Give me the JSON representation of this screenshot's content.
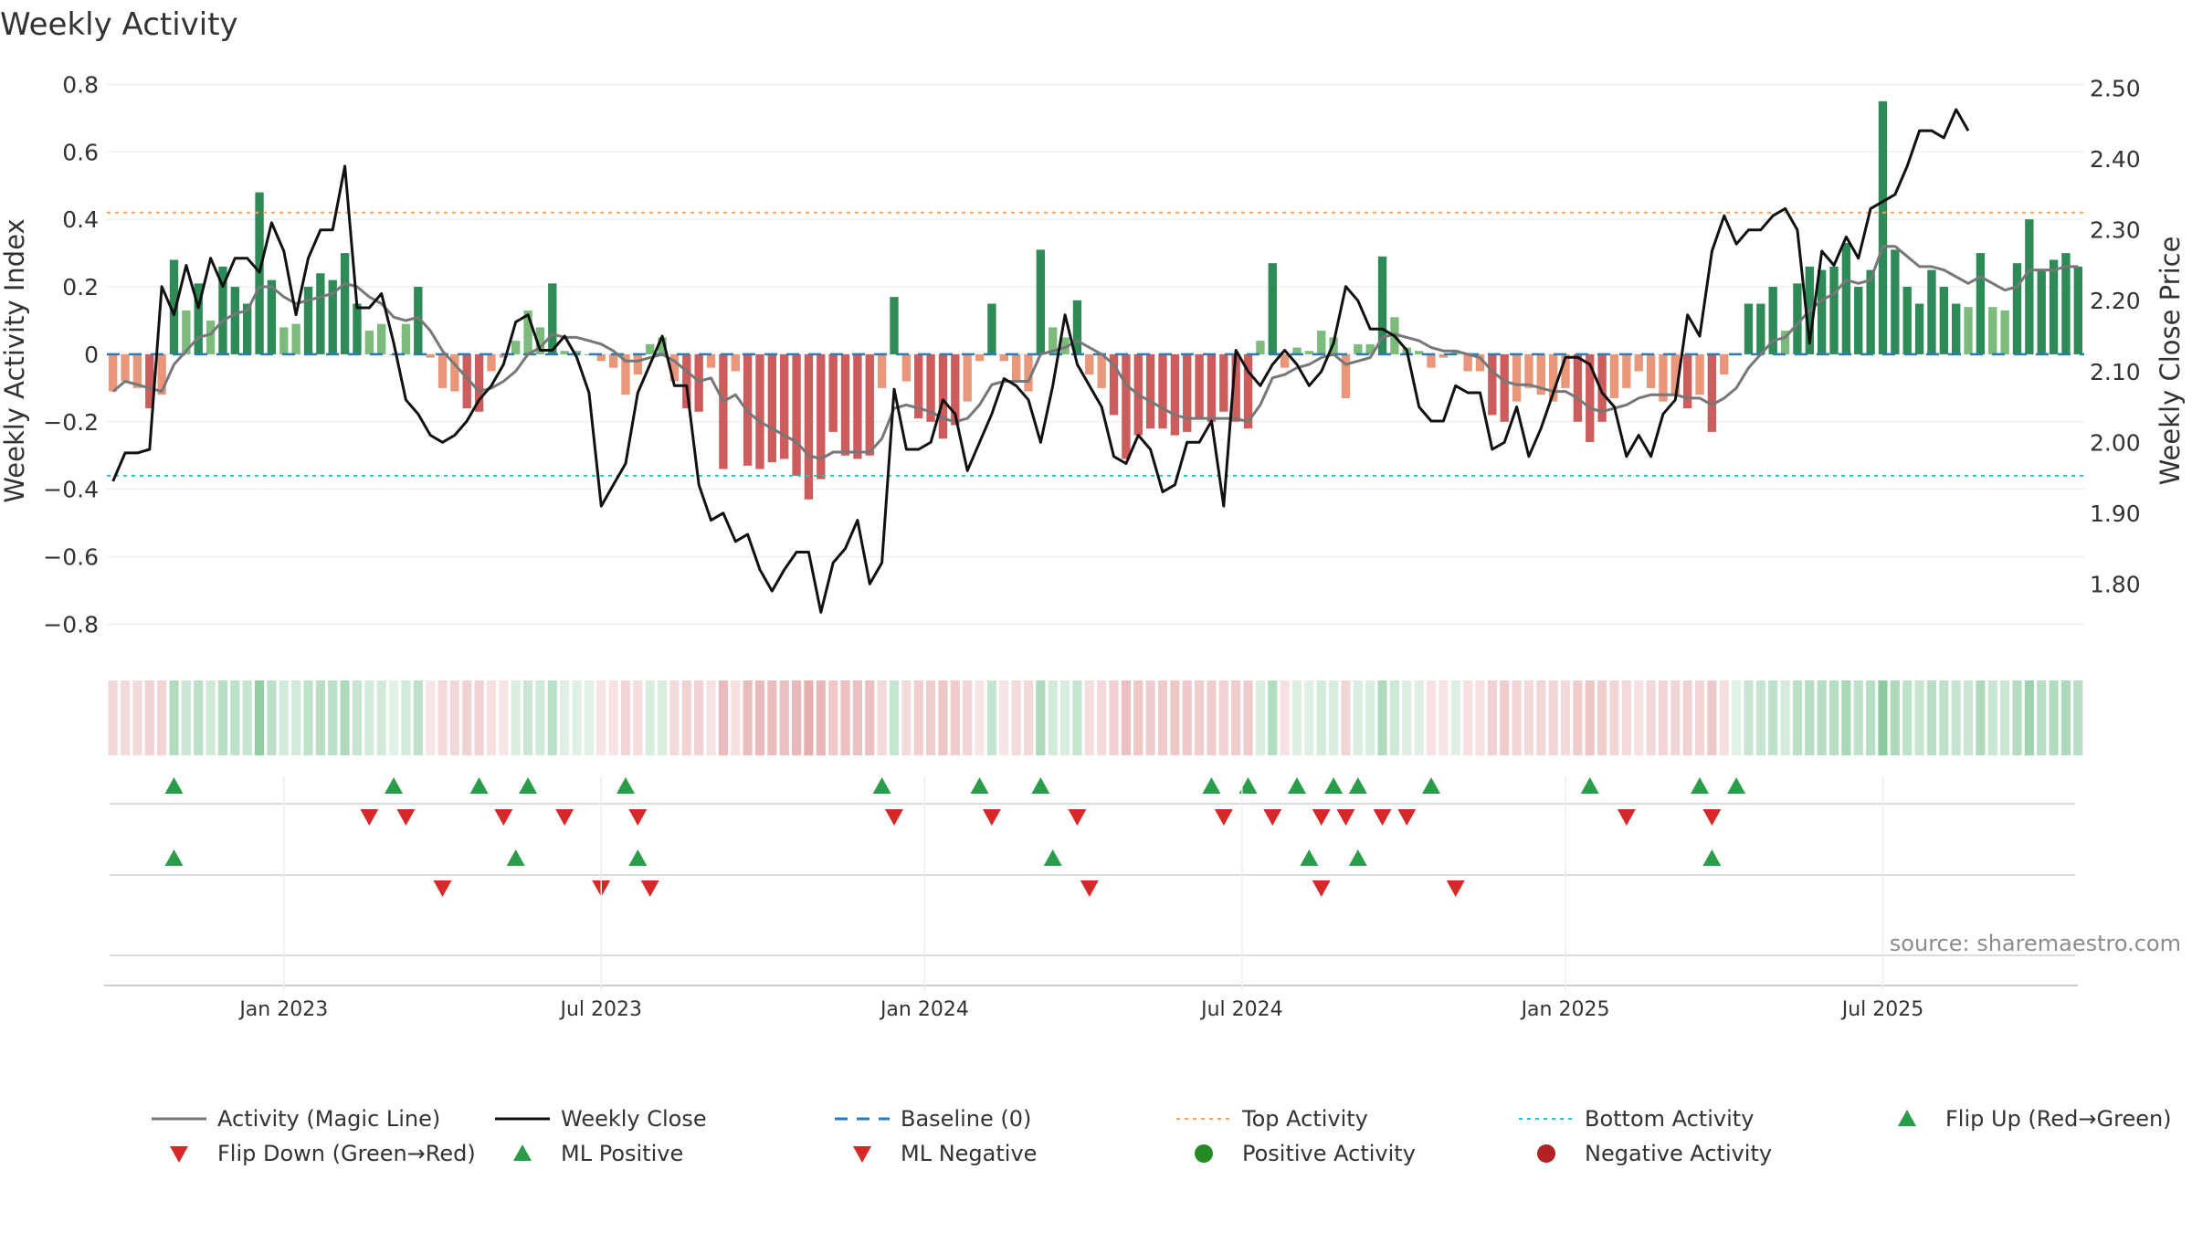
{
  "chart_data": {
    "type": "bar",
    "title": "Weekly Activity",
    "ylabel": "Weekly Activity Index",
    "y2label": "Weekly Close Price",
    "ylim": [
      -0.88,
      0.82
    ],
    "y2lim": [
      1.705,
      2.515
    ],
    "yticks": [
      "0.8",
      "0.6",
      "0.4",
      "0.2",
      "0",
      "−0.2",
      "−0.4",
      "−0.6",
      "−0.8"
    ],
    "y2ticks": [
      "2.50",
      "2.40",
      "2.30",
      "2.20",
      "2.10",
      "2.00",
      "1.90",
      "1.80"
    ],
    "xticks": [
      {
        "label": "Jan 2023",
        "week": 14
      },
      {
        "label": "Jul 2023",
        "week": 40
      },
      {
        "label": "Jan 2024",
        "week": 66.5
      },
      {
        "label": "Jul 2024",
        "week": 92.5
      },
      {
        "label": "Jan 2025",
        "week": 119
      },
      {
        "label": "Jul 2025",
        "week": 145
      }
    ],
    "top_activity": 0.42,
    "bottom_activity": -0.36,
    "baseline": 0,
    "activity": [
      -0.11,
      -0.08,
      -0.1,
      -0.16,
      -0.12,
      0.28,
      0.13,
      0.21,
      0.1,
      0.26,
      0.2,
      0.15,
      0.48,
      0.22,
      0.08,
      0.09,
      0.2,
      0.24,
      0.22,
      0.3,
      0.15,
      0.07,
      0.09,
      0.0,
      0.09,
      0.2,
      -0.01,
      -0.1,
      -0.11,
      -0.16,
      -0.17,
      -0.05,
      -0.01,
      0.04,
      0.13,
      0.08,
      0.21,
      0.01,
      0.01,
      0.0,
      -0.02,
      -0.04,
      -0.12,
      -0.06,
      0.03,
      0.05,
      -0.08,
      -0.16,
      -0.17,
      -0.04,
      -0.34,
      -0.05,
      -0.33,
      -0.34,
      -0.32,
      -0.31,
      -0.36,
      -0.43,
      -0.37,
      -0.23,
      -0.3,
      -0.31,
      -0.3,
      -0.1,
      0.17,
      -0.08,
      -0.19,
      -0.2,
      -0.25,
      -0.21,
      -0.14,
      -0.02,
      0.15,
      -0.02,
      -0.08,
      -0.11,
      0.31,
      0.08,
      0.05,
      0.16,
      -0.06,
      -0.1,
      -0.18,
      -0.31,
      -0.24,
      -0.22,
      -0.22,
      -0.24,
      -0.23,
      -0.19,
      -0.2,
      -0.17,
      -0.2,
      -0.22,
      0.04,
      0.27,
      -0.04,
      0.02,
      0.01,
      0.07,
      0.05,
      -0.13,
      0.03,
      0.03,
      0.29,
      0.11,
      0.02,
      0.01,
      -0.04,
      -0.01,
      0.01,
      -0.05,
      -0.05,
      -0.18,
      -0.2,
      -0.14,
      -0.1,
      -0.12,
      -0.14,
      -0.1,
      -0.2,
      -0.26,
      -0.2,
      -0.13,
      -0.1,
      -0.05,
      -0.1,
      -0.14,
      -0.12,
      -0.16,
      -0.12,
      -0.23,
      -0.06,
      0.0,
      0.15,
      0.15,
      0.2,
      0.07,
      0.21,
      0.26,
      0.25,
      0.26,
      0.33,
      0.2,
      0.25,
      0.75,
      0.31,
      0.2,
      0.15,
      0.25,
      0.2,
      0.15,
      0.14,
      0.3,
      0.14,
      0.13,
      0.27,
      0.4,
      0.25,
      0.28,
      0.3,
      0.26
    ],
    "magic_line": [
      -0.11,
      -0.08,
      -0.09,
      -0.1,
      -0.11,
      -0.03,
      0.01,
      0.05,
      0.06,
      0.1,
      0.12,
      0.13,
      0.2,
      0.2,
      0.17,
      0.15,
      0.16,
      0.17,
      0.18,
      0.21,
      0.2,
      0.17,
      0.15,
      0.11,
      0.1,
      0.11,
      0.07,
      0.01,
      -0.03,
      -0.07,
      -0.11,
      -0.1,
      -0.08,
      -0.05,
      0.0,
      0.02,
      0.06,
      0.05,
      0.05,
      0.04,
      0.03,
      0.01,
      -0.02,
      -0.02,
      -0.01,
      0.0,
      -0.02,
      -0.05,
      -0.08,
      -0.07,
      -0.14,
      -0.12,
      -0.17,
      -0.2,
      -0.22,
      -0.24,
      -0.26,
      -0.3,
      -0.31,
      -0.29,
      -0.29,
      -0.29,
      -0.29,
      -0.25,
      -0.16,
      -0.15,
      -0.16,
      -0.17,
      -0.19,
      -0.2,
      -0.19,
      -0.15,
      -0.09,
      -0.08,
      -0.08,
      -0.08,
      0.0,
      0.01,
      0.02,
      0.04,
      0.02,
      0.0,
      -0.03,
      -0.09,
      -0.12,
      -0.14,
      -0.16,
      -0.18,
      -0.19,
      -0.19,
      -0.19,
      -0.19,
      -0.19,
      -0.2,
      -0.15,
      -0.07,
      -0.06,
      -0.04,
      -0.03,
      -0.01,
      0.0,
      -0.03,
      -0.02,
      -0.01,
      0.05,
      0.06,
      0.05,
      0.04,
      0.02,
      0.01,
      0.01,
      0.0,
      -0.01,
      -0.05,
      -0.08,
      -0.09,
      -0.09,
      -0.1,
      -0.11,
      -0.11,
      -0.13,
      -0.16,
      -0.17,
      -0.16,
      -0.15,
      -0.13,
      -0.12,
      -0.12,
      -0.12,
      -0.13,
      -0.13,
      -0.15,
      -0.13,
      -0.1,
      -0.04,
      0.0,
      0.04,
      0.05,
      0.09,
      0.13,
      0.16,
      0.18,
      0.22,
      0.21,
      0.22,
      0.32,
      0.32,
      0.29,
      0.26,
      0.26,
      0.25,
      0.23,
      0.21,
      0.23,
      0.21,
      0.19,
      0.2,
      0.25,
      0.25,
      0.25,
      0.26,
      0.26
    ],
    "weekly_close": [
      1.945,
      1.985,
      1.985,
      1.99,
      2.22,
      2.18,
      2.25,
      2.19,
      2.26,
      2.22,
      2.26,
      2.26,
      2.24,
      2.31,
      2.27,
      2.18,
      2.26,
      2.3,
      2.3,
      2.39,
      2.19,
      2.19,
      2.21,
      2.14,
      2.06,
      2.04,
      2.01,
      2.0,
      2.01,
      2.03,
      2.06,
      2.08,
      2.11,
      2.17,
      2.18,
      2.13,
      2.13,
      2.15,
      2.12,
      2.07,
      1.91,
      1.94,
      1.97,
      2.07,
      2.11,
      2.15,
      2.08,
      2.08,
      1.94,
      1.89,
      1.9,
      1.86,
      1.87,
      1.82,
      1.79,
      1.82,
      1.845,
      1.845,
      1.76,
      1.83,
      1.85,
      1.89,
      1.8,
      1.83,
      2.075,
      1.99,
      1.99,
      2.0,
      2.06,
      2.04,
      1.96,
      2.0,
      2.04,
      2.09,
      2.08,
      2.06,
      2.0,
      2.08,
      2.18,
      2.11,
      2.08,
      2.05,
      1.98,
      1.97,
      2.01,
      1.99,
      1.93,
      1.94,
      2.0,
      2.0,
      2.03,
      1.91,
      2.13,
      2.1,
      2.08,
      2.11,
      2.13,
      2.11,
      2.08,
      2.1,
      2.14,
      2.22,
      2.2,
      2.16,
      2.16,
      2.15,
      2.13,
      2.05,
      2.03,
      2.03,
      2.08,
      2.07,
      2.07,
      1.99,
      2.0,
      2.05,
      1.98,
      2.02,
      2.07,
      2.12,
      2.12,
      2.11,
      2.07,
      2.05,
      1.98,
      2.01,
      1.98,
      2.04,
      2.06,
      2.18,
      2.15,
      2.27,
      2.32,
      2.28,
      2.3,
      2.3,
      2.32,
      2.33,
      2.3,
      2.14,
      2.27,
      2.25,
      2.29,
      2.26,
      2.33,
      2.34,
      2.35,
      2.39,
      2.44,
      2.44,
      2.43,
      2.47,
      2.44
    ],
    "flip_up": [
      5,
      23,
      30,
      34,
      42,
      63,
      71,
      76,
      90,
      93,
      97,
      100,
      102,
      108,
      121,
      130,
      133
    ],
    "flip_down": [
      21,
      24,
      32,
      37,
      43,
      64,
      72,
      79,
      91,
      95,
      99,
      101,
      104,
      106,
      124,
      131
    ],
    "ml_positive": [
      5,
      33,
      43,
      77,
      98,
      102,
      131
    ],
    "ml_negative": [
      27,
      40,
      44,
      80,
      99,
      110
    ]
  },
  "source_note": "source: sharemaestro.com",
  "legend": [
    {
      "label": "Activity (Magic Line)",
      "kind": "line",
      "color": "#777777"
    },
    {
      "label": "Weekly Close",
      "kind": "line",
      "color": "#111111"
    },
    {
      "label": "Baseline (0)",
      "kind": "dash",
      "color": "#2c7bb6"
    },
    {
      "label": "Top Activity",
      "kind": "dot",
      "color": "#f4a261"
    },
    {
      "label": "Bottom Activity",
      "kind": "dot",
      "color": "#22c3d3"
    },
    {
      "label": "Flip Up (Red→Green)",
      "kind": "tri-up",
      "color": "#2a9d4a"
    },
    {
      "label": "Flip Down (Green→Red)",
      "kind": "tri-down",
      "color": "#d62828"
    },
    {
      "label": "ML Positive",
      "kind": "tri-up",
      "color": "#2a9d4a"
    },
    {
      "label": "ML Negative",
      "kind": "tri-down",
      "color": "#d62828"
    },
    {
      "label": "Positive Activity",
      "kind": "circle",
      "color": "#228b22"
    },
    {
      "label": "Negative Activity",
      "kind": "circle",
      "color": "#b22222"
    }
  ],
  "colors": {
    "pos_strong": "#2e8b57",
    "pos_light": "#7dbb7d",
    "neg_strong": "#cd5c5c",
    "neg_light": "#e9967a",
    "grid": "#e8e8e8",
    "axis": "#cccccc"
  }
}
